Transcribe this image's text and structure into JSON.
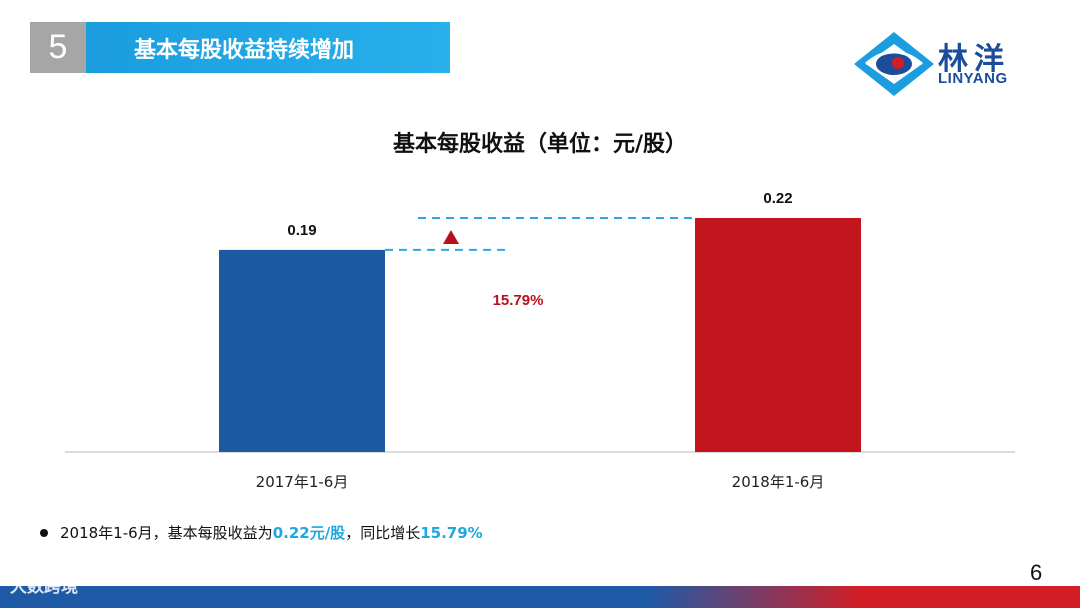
{
  "slide": {
    "section_number": "5",
    "section_title": "基本每股收益持续增加",
    "footnote": {
      "prefix": "2018年1-6月，基本每股收益为",
      "value_highlight": "0.22元/股",
      "middle": "，同比增长",
      "growth_highlight": "15.79%"
    },
    "page_number": "6",
    "watermark": "大数跨境"
  },
  "logo": {
    "name_cn": "林洋",
    "name_en": "LINYANG"
  },
  "colors": {
    "bar_2017": "#1b5aa0",
    "bar_2018": "#c3151d",
    "arrow": "#b5121b",
    "dashed_line": "#29a9e0",
    "highlight": "#1ea7e1"
  },
  "chart_data": {
    "type": "bar",
    "title": "基本每股收益（单位：元/股）",
    "categories": [
      "2017年1-6月",
      "2018年1-6月"
    ],
    "values": [
      0.19,
      0.22
    ],
    "value_labels": [
      "0.19",
      "0.22"
    ],
    "ylim": [
      0,
      0.22
    ],
    "growth_annotation": "15.79%",
    "grid": false,
    "legend": "none"
  }
}
